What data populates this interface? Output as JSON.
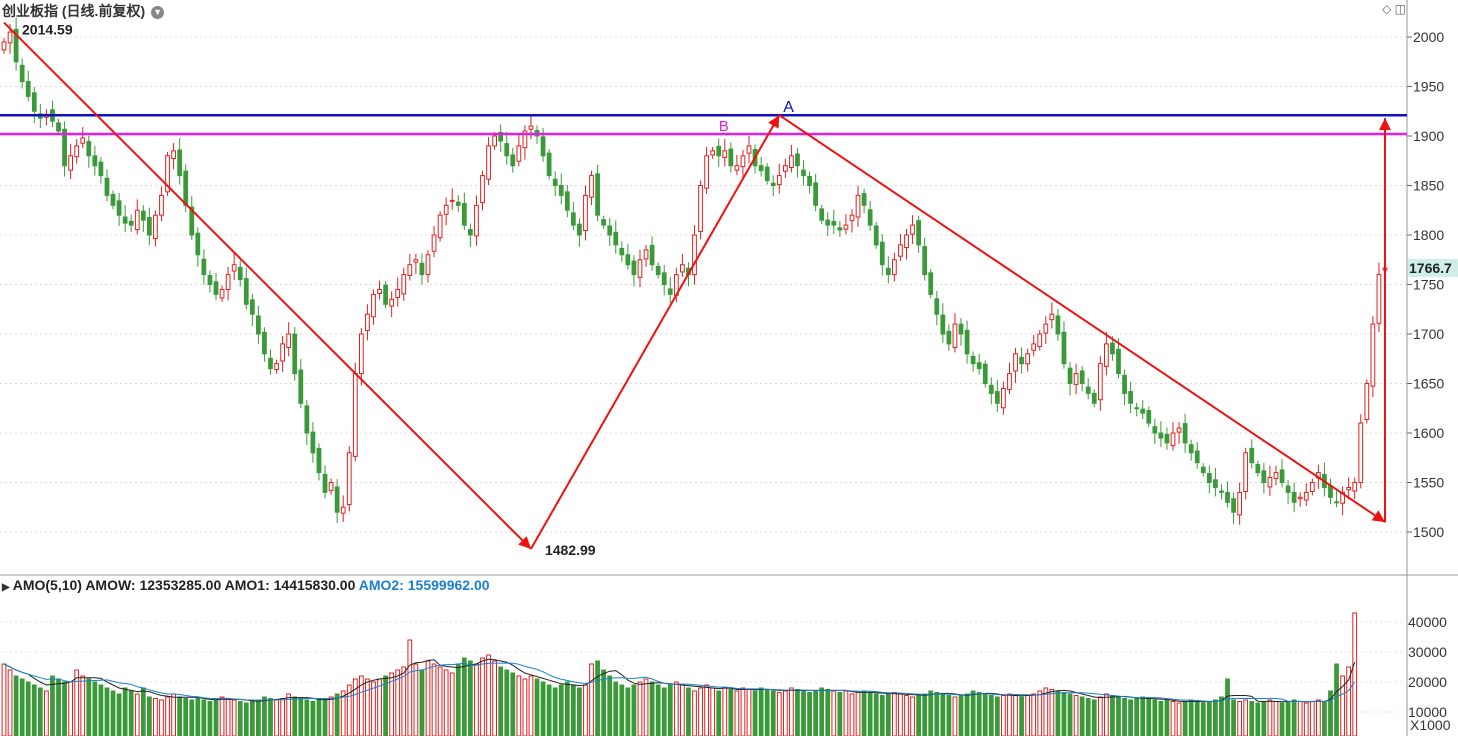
{
  "header": {
    "title": "创业板指 (日线.前复权)",
    "dropdown_icon": "chevron-down-icon",
    "icons": [
      "diamond-icon",
      "window-icon"
    ]
  },
  "price_axis": {
    "ticks": [
      2000,
      1950,
      1900,
      1850,
      1800,
      1750,
      1700,
      1650,
      1600,
      1550,
      1500
    ],
    "ylim": [
      1450,
      2030
    ],
    "current_price_label": "1766.7",
    "current_price": 1766.7
  },
  "annotations": {
    "high_label": "2014.59",
    "low_label": "1482.99",
    "point_a": "A",
    "point_b": "B",
    "line_a_level": 1921,
    "line_b_level": 1902
  },
  "volume_panel": {
    "indicator_label": "AMO(5,10)",
    "amow": "AMOW: 12353285.00",
    "amo1": "AMO1: 14415830.00",
    "amo2": "AMO2: 15599962.00",
    "ticks": [
      "40000",
      "30000",
      "20000",
      "10000"
    ],
    "unit_label": "X1000"
  },
  "colors": {
    "up": "#e02020",
    "down": "#3a9a3a",
    "line_a": "#1010c0",
    "line_b": "#e020e0",
    "trend": "#ee1111",
    "amo1": "#222222",
    "amo2": "#1a7fd0"
  },
  "chart_data": {
    "type": "candlestick",
    "ylim": [
      1450,
      2030
    ],
    "trend_points": [
      {
        "label": "2014.59",
        "value": 2014.59
      },
      {
        "label": "1482.99",
        "value": 1482.99
      },
      {
        "label": "A",
        "value": 1921
      },
      {
        "label": "",
        "value": 1510
      },
      {
        "label": "",
        "value": 1918
      }
    ],
    "close_series": [
      1995,
      2005,
      1975,
      1955,
      1940,
      1925,
      1918,
      1922,
      1915,
      1905,
      1870,
      1880,
      1890,
      1898,
      1880,
      1870,
      1860,
      1840,
      1830,
      1820,
      1812,
      1810,
      1825,
      1815,
      1800,
      1820,
      1840,
      1880,
      1885,
      1860,
      1830,
      1800,
      1780,
      1760,
      1750,
      1740,
      1745,
      1760,
      1770,
      1755,
      1730,
      1720,
      1700,
      1680,
      1665,
      1670,
      1690,
      1700,
      1660,
      1630,
      1600,
      1580,
      1560,
      1540,
      1550,
      1520,
      1525,
      1580,
      1660,
      1700,
      1720,
      1740,
      1745,
      1730,
      1735,
      1745,
      1760,
      1770,
      1775,
      1760,
      1780,
      1800,
      1820,
      1830,
      1835,
      1830,
      1810,
      1800,
      1830,
      1860,
      1890,
      1900,
      1895,
      1880,
      1870,
      1890,
      1905,
      1910,
      1900,
      1880,
      1860,
      1850,
      1840,
      1825,
      1810,
      1800,
      1840,
      1860,
      1820,
      1810,
      1800,
      1790,
      1780,
      1770,
      1760,
      1775,
      1785,
      1770,
      1760,
      1750,
      1740,
      1760,
      1770,
      1760,
      1800,
      1850,
      1880,
      1885,
      1880,
      1885,
      1870,
      1870,
      1880,
      1890,
      1870,
      1865,
      1855,
      1850,
      1860,
      1870,
      1880,
      1870,
      1860,
      1850,
      1830,
      1815,
      1810,
      1810,
      1805,
      1810,
      1820,
      1840,
      1830,
      1810,
      1790,
      1770,
      1760,
      1775,
      1790,
      1800,
      1810,
      1790,
      1760,
      1740,
      1720,
      1700,
      1690,
      1710,
      1700,
      1680,
      1670,
      1665,
      1650,
      1640,
      1630,
      1645,
      1660,
      1680,
      1670,
      1680,
      1690,
      1700,
      1710,
      1720,
      1700,
      1670,
      1650,
      1660,
      1650,
      1640,
      1630,
      1670,
      1690,
      1680,
      1660,
      1640,
      1630,
      1625,
      1620,
      1610,
      1600,
      1595,
      1590,
      1600,
      1605,
      1590,
      1580,
      1570,
      1560,
      1550,
      1545,
      1540,
      1530,
      1520,
      1540,
      1580,
      1570,
      1560,
      1550,
      1555,
      1560,
      1550,
      1540,
      1530,
      1535,
      1540,
      1550,
      1560,
      1545,
      1535,
      1530,
      1540,
      1545,
      1550,
      1610,
      1650,
      1710,
      1760,
      1766.7
    ],
    "volume_series": [
      26000,
      24000,
      22000,
      21000,
      20000,
      19000,
      18000,
      17000,
      22000,
      21000,
      20000,
      20000,
      24000,
      22000,
      21000,
      20000,
      19000,
      18000,
      17000,
      16000,
      18000,
      17000,
      16000,
      18000,
      15000,
      14500,
      14000,
      15000,
      16000,
      15000,
      14500,
      14000,
      15000,
      14000,
      13500,
      14000,
      15000,
      14500,
      14000,
      13500,
      13000,
      13500,
      14000,
      15000,
      14500,
      14000,
      14500,
      16000,
      15000,
      14500,
      14000,
      13500,
      14000,
      14500,
      15000,
      16000,
      17000,
      19000,
      21000,
      22000,
      21000,
      20000,
      21000,
      22000,
      23000,
      24000,
      25000,
      34000,
      26000,
      24000,
      27000,
      26000,
      25000,
      24000,
      23000,
      26000,
      28000,
      27000,
      26000,
      28000,
      29000,
      27000,
      25000,
      24000,
      23000,
      22000,
      21000,
      22000,
      21000,
      20000,
      19000,
      18000,
      19000,
      20000,
      19000,
      18000,
      19000,
      26000,
      27000,
      24000,
      22000,
      20000,
      19000,
      18000,
      19000,
      20000,
      21000,
      20000,
      19000,
      18000,
      19000,
      20000,
      19000,
      18000,
      17000,
      18000,
      19000,
      18000,
      17000,
      18000,
      17500,
      17000,
      18000,
      17500,
      17000,
      18000,
      17500,
      17000,
      16500,
      17000,
      18000,
      17500,
      17000,
      16500,
      17000,
      18000,
      17500,
      17000,
      16500,
      17000,
      16000,
      16500,
      17000,
      16500,
      16000,
      15500,
      16000,
      16500,
      16000,
      15500,
      15000,
      15500,
      16000,
      17000,
      16500,
      16000,
      15500,
      15000,
      15500,
      16000,
      17000,
      16500,
      16000,
      15500,
      15000,
      15500,
      16000,
      15500,
      15000,
      15500,
      16000,
      17000,
      18000,
      17500,
      17000,
      16500,
      16000,
      15500,
      15000,
      14500,
      14000,
      15000,
      16000,
      15500,
      15000,
      14500,
      14000,
      14500,
      15000,
      14500,
      14000,
      13500,
      14000,
      13500,
      13000,
      13500,
      14000,
      13500,
      13000,
      13500,
      14000,
      15000,
      21000,
      14000,
      13500,
      14000,
      13500,
      13000,
      13500,
      14000,
      13500,
      13000,
      13500,
      14000,
      13500,
      13000,
      13500,
      14000,
      13500,
      17000,
      26000,
      22000,
      25000,
      43000
    ]
  }
}
